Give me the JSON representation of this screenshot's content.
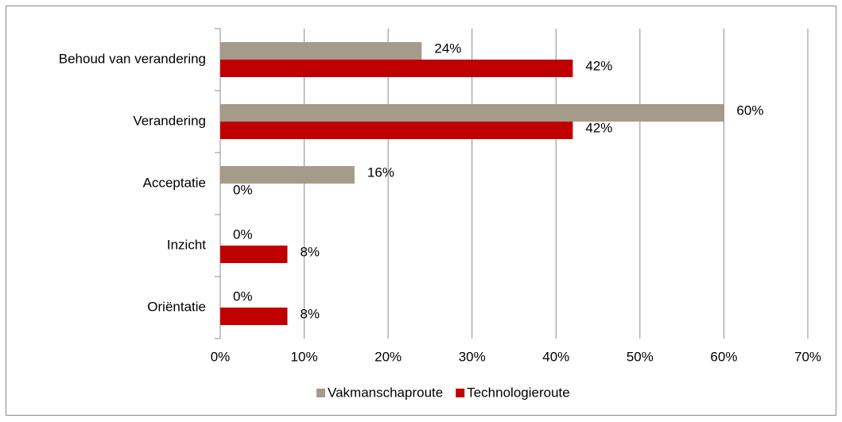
{
  "chart_data": {
    "type": "bar",
    "orientation": "horizontal",
    "categories": [
      "Behoud van verandering",
      "Verandering",
      "Acceptatie",
      "Inzicht",
      "Oriëntatie"
    ],
    "series": [
      {
        "name": "Vakmanschaproute",
        "color": "#a59b8a",
        "values": [
          24,
          60,
          16,
          0,
          0
        ],
        "value_labels": [
          "24%",
          "60%",
          "16%",
          "0%",
          "0%"
        ]
      },
      {
        "name": "Technologieroute",
        "color": "#c00000",
        "values": [
          42,
          42,
          0,
          8,
          8
        ],
        "value_labels": [
          "42%",
          "42%",
          "0%",
          "8%",
          "8%"
        ]
      }
    ],
    "xlim": [
      0,
      70
    ],
    "xticks": [
      {
        "value": 0,
        "label": "0%"
      },
      {
        "value": 10,
        "label": "10%"
      },
      {
        "value": 20,
        "label": "20%"
      },
      {
        "value": 30,
        "label": "30%"
      },
      {
        "value": 40,
        "label": "40%"
      },
      {
        "value": 50,
        "label": "50%"
      },
      {
        "value": 60,
        "label": "60%"
      },
      {
        "value": 70,
        "label": "70%"
      }
    ],
    "grid": true,
    "legend": "bottom"
  }
}
